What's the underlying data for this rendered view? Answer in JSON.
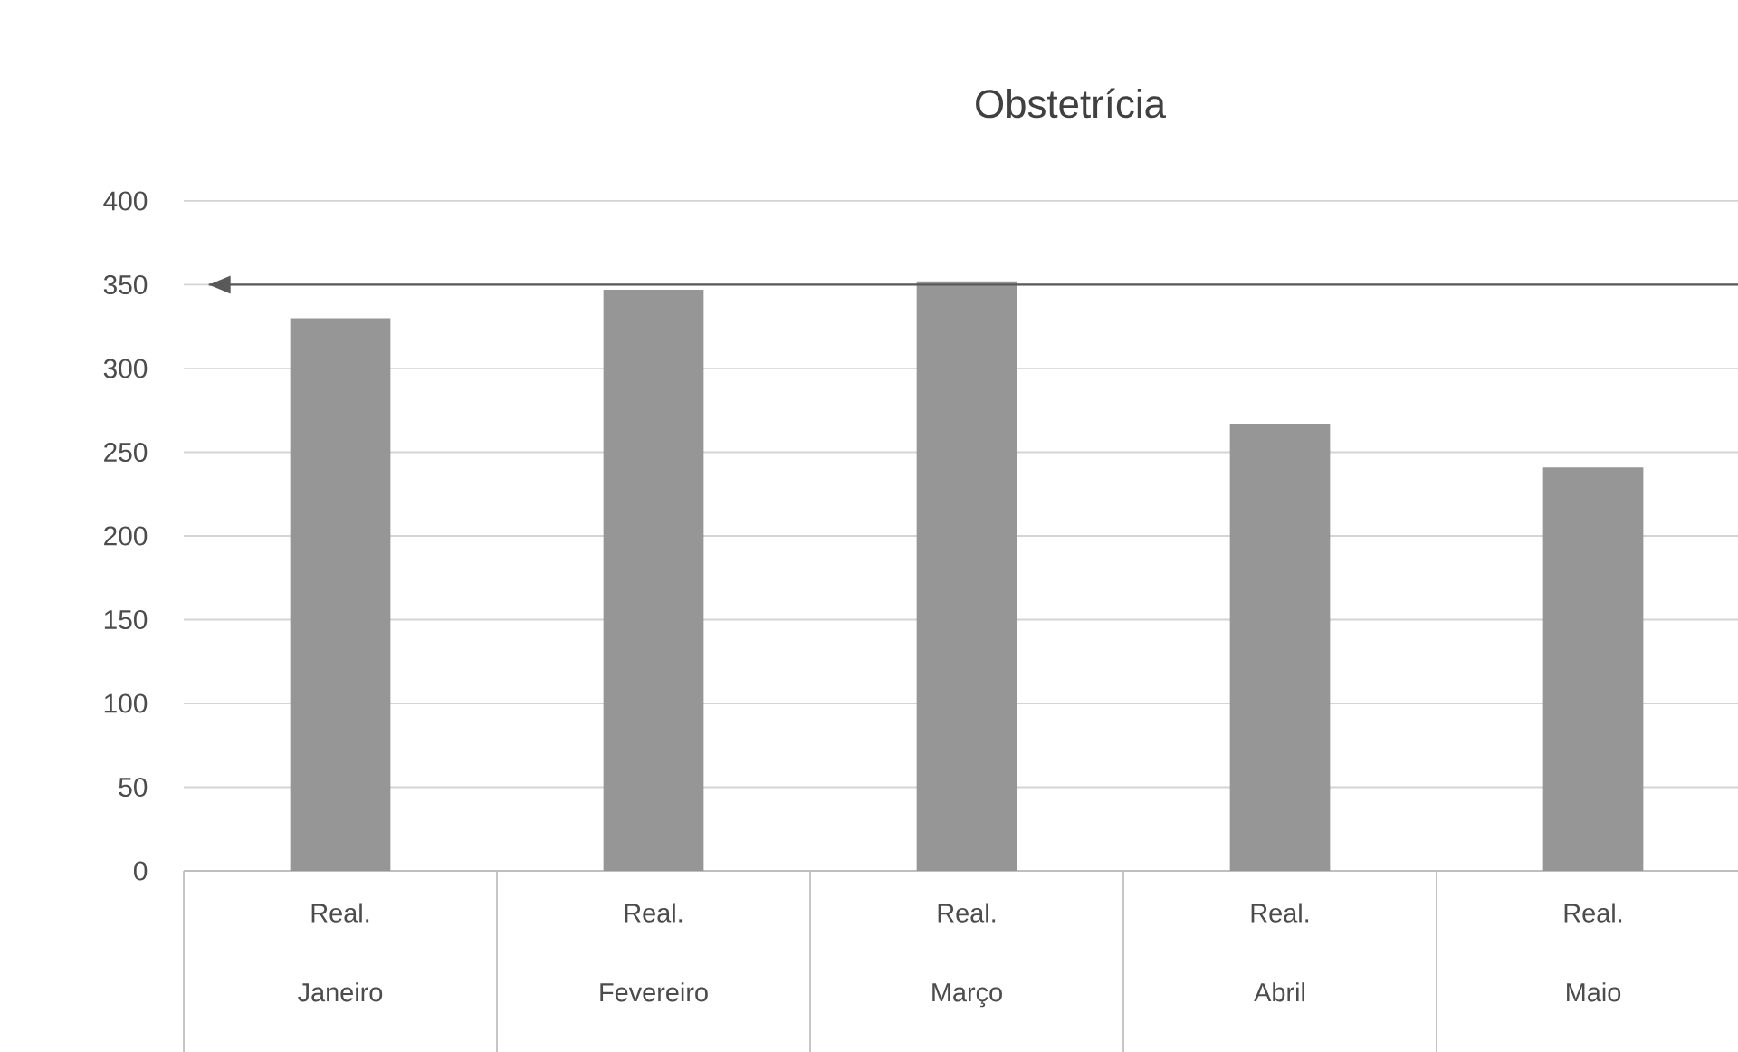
{
  "chart_data": {
    "type": "bar",
    "title": "Obstetrícia",
    "categories": [
      "Real. Janeiro",
      "Real. Fevereiro",
      "Real. Março",
      "Real. Abril",
      "Real. Maio"
    ],
    "values": [
      330,
      347,
      352,
      267,
      241
    ],
    "color": "#969696",
    "ylim": [
      0,
      400
    ],
    "yticks": [
      0,
      50,
      100,
      150,
      200,
      250,
      300,
      350,
      400
    ],
    "grid": "y",
    "ref_lines": [
      {
        "axis": "y",
        "value": 350,
        "color": "#595959"
      }
    ]
  }
}
